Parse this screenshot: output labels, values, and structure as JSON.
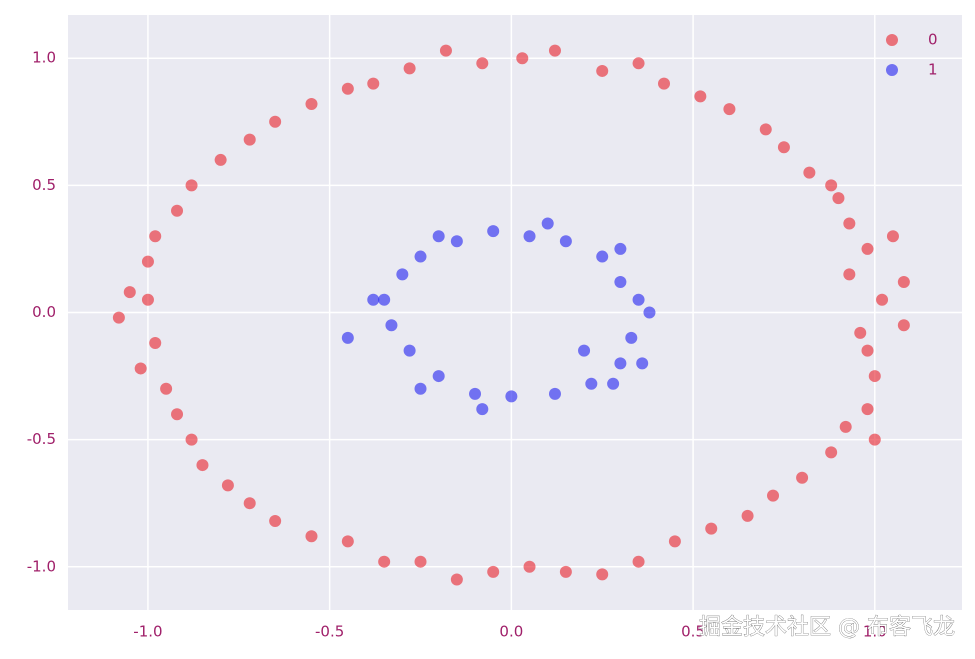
{
  "chart_data": {
    "type": "scatter",
    "xlim": [
      -1.22,
      1.24
    ],
    "ylim": [
      -1.17,
      1.17
    ],
    "xticks": [
      -1.0,
      -0.5,
      0.0,
      0.5,
      1.0
    ],
    "yticks": [
      1.0,
      0.5,
      0.0,
      -0.5,
      -1.0
    ],
    "grid": true,
    "legend": "upper right",
    "watermark": "掘金技术社区 @ 布客飞龙",
    "series": [
      {
        "name": "0",
        "color": "#e8202a",
        "x": [
          1.02,
          0.96,
          1.08,
          0.98,
          0.93,
          1.05,
          0.9,
          0.82,
          0.88,
          0.75,
          0.7,
          0.6,
          0.52,
          0.42,
          0.35,
          0.25,
          0.12,
          0.03,
          -0.08,
          -0.18,
          -0.28,
          -0.38,
          -0.45,
          -0.55,
          -0.65,
          -0.72,
          -0.8,
          -0.88,
          -0.92,
          -0.98,
          -1.0,
          -1.05,
          -1.0,
          -1.08,
          -0.98,
          -1.02,
          -0.95,
          -0.92,
          -0.88,
          -0.85,
          -0.78,
          -0.72,
          -0.65,
          -0.55,
          -0.45,
          -0.35,
          -0.25,
          -0.15,
          -0.05,
          0.05,
          0.15,
          0.25,
          0.35,
          0.45,
          0.55,
          0.65,
          0.72,
          0.8,
          0.88,
          0.92,
          0.98,
          1.0,
          0.98,
          1.08,
          1.0,
          0.93
        ],
        "values": [
          0.05,
          -0.08,
          0.12,
          0.25,
          0.35,
          0.3,
          0.45,
          0.55,
          0.5,
          0.65,
          0.72,
          0.8,
          0.85,
          0.9,
          0.98,
          0.95,
          1.03,
          1.0,
          0.98,
          1.03,
          0.96,
          0.9,
          0.88,
          0.82,
          0.75,
          0.68,
          0.6,
          0.5,
          0.4,
          0.3,
          0.2,
          0.08,
          0.05,
          -0.02,
          -0.12,
          -0.22,
          -0.3,
          -0.4,
          -0.5,
          -0.6,
          -0.68,
          -0.75,
          -0.82,
          -0.88,
          -0.9,
          -0.98,
          -0.98,
          -1.05,
          -1.02,
          -1.0,
          -1.02,
          -1.03,
          -0.98,
          -0.9,
          -0.85,
          -0.8,
          -0.72,
          -0.65,
          -0.55,
          -0.45,
          -0.38,
          -0.25,
          -0.15,
          -0.05,
          -0.5,
          0.15
        ]
      },
      {
        "name": "1",
        "color": "#2020f0",
        "x": [
          0.35,
          0.33,
          0.3,
          0.22,
          0.12,
          0.0,
          -0.1,
          -0.2,
          -0.28,
          -0.33,
          -0.35,
          -0.3,
          -0.25,
          -0.15,
          -0.05,
          0.05,
          0.15,
          0.25,
          0.3,
          0.38,
          0.28,
          -0.38,
          -0.45,
          0.36,
          -0.2,
          0.1,
          -0.08,
          0.2,
          -0.25,
          0.3
        ],
        "values": [
          0.05,
          -0.1,
          -0.2,
          -0.28,
          -0.32,
          -0.33,
          -0.32,
          -0.25,
          -0.15,
          -0.05,
          0.05,
          0.15,
          0.22,
          0.28,
          0.32,
          0.3,
          0.28,
          0.22,
          0.12,
          0.0,
          -0.28,
          0.05,
          -0.1,
          -0.2,
          0.3,
          0.35,
          -0.38,
          -0.15,
          -0.3,
          0.25
        ]
      }
    ]
  }
}
